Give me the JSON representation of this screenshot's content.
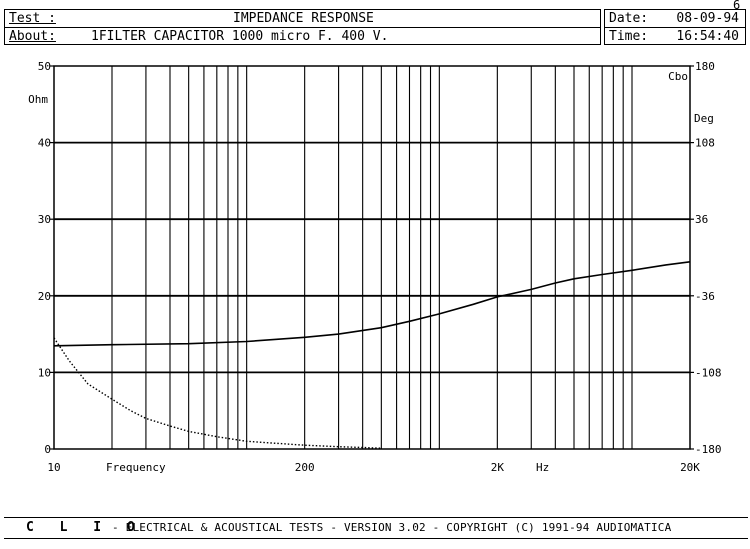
{
  "page_number": "6",
  "header": {
    "test_label": "Test :",
    "test_value": "IMPEDANCE RESPONSE",
    "about_label": "About:",
    "about_value": "1FILTER CAPACITOR 1000 micro F. 400 V.",
    "date_label": "Date:",
    "date_value": "08-09-94",
    "time_label": "Time:",
    "time_value": "16:54:40"
  },
  "footer": {
    "brand": "C L I O",
    "text": "-  ELECTRICAL & ACOUSTICAL TESTS  -  VERSION 3.02  -  COPYRIGHT (C) 1991-94 AUDIOMATICA"
  },
  "chart_data": {
    "type": "line",
    "title": "IMPEDANCE RESPONSE",
    "xlabel": "Frequency",
    "x_unit": "Hz",
    "x_scale": "log",
    "xlim": [
      10,
      20000
    ],
    "x_tick_labels": [
      "10",
      "200",
      "2K",
      "20K"
    ],
    "x_tick_values": [
      10,
      200,
      2000,
      20000
    ],
    "ylabel": "Ohm",
    "ylim": [
      0,
      50
    ],
    "y_ticks": [
      0,
      10,
      20,
      30,
      40,
      50
    ],
    "y_right_label": "Deg",
    "y_right_corner": "Cbo",
    "y_right_lim": [
      -180,
      180
    ],
    "y_right_ticks": [
      "180",
      "108",
      "36",
      "-36",
      "-108",
      "-180"
    ],
    "grid": true,
    "series": [
      {
        "axis": "left",
        "style": "dotted",
        "x": [
          10,
          12,
          15,
          20,
          25,
          30,
          40,
          50,
          70,
          100,
          150,
          200,
          300,
          400,
          500
        ],
        "y": [
          14.5,
          11.5,
          8.5,
          6.5,
          5.0,
          4.0,
          3.0,
          2.3,
          1.6,
          1.0,
          0.7,
          0.5,
          0.3,
          0.2,
          0.1
        ]
      },
      {
        "axis": "right",
        "style": "solid",
        "x": [
          10,
          20,
          50,
          100,
          200,
          300,
          500,
          700,
          1000,
          1500,
          2000,
          3000,
          4000,
          5000,
          7000,
          10000,
          15000,
          20000
        ],
        "y": [
          -83,
          -82,
          -81,
          -79,
          -75,
          -72,
          -66,
          -60,
          -53,
          -44,
          -37,
          -30,
          -24,
          -20,
          -16,
          -12,
          -7,
          -4
        ]
      }
    ]
  }
}
